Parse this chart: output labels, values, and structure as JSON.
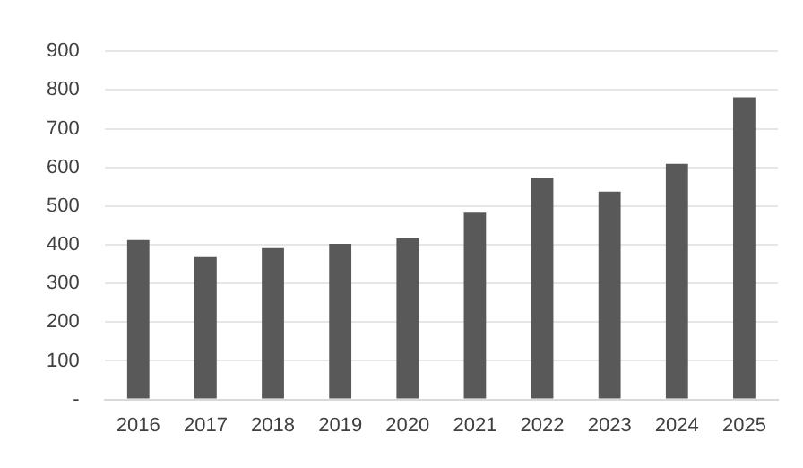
{
  "chart_data": {
    "type": "bar",
    "categories": [
      "2016",
      "2017",
      "2018",
      "2019",
      "2020",
      "2021",
      "2022",
      "2023",
      "2024",
      "2025"
    ],
    "values": [
      412,
      368,
      391,
      402,
      417,
      483,
      573,
      537,
      609,
      781
    ],
    "color": "#595959",
    "ylim": [
      0,
      900
    ],
    "yticks": [
      {
        "value": 0,
        "label": "-"
      },
      100,
      200,
      300,
      400,
      500,
      600,
      700,
      800,
      900
    ],
    "grid": "y"
  }
}
